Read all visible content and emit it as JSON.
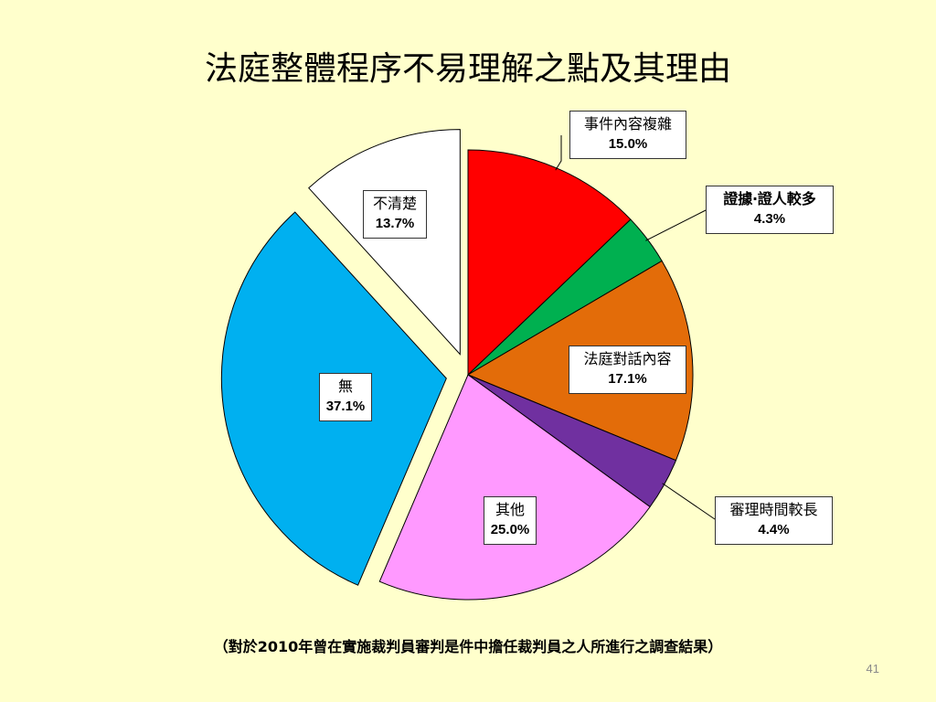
{
  "slide": {
    "title": "法庭整體程序不易理解之點及其理由",
    "footnote": "（對於2010年曾在實施裁判員審判是件中擔任裁判員之人所進行之調查結果）",
    "page_number": "41"
  },
  "chart_data": {
    "type": "pie",
    "title": "法庭整體程序不易理解之點及其理由",
    "slices": [
      {
        "label": "事件內容複雜",
        "value": 15.0,
        "value_label": "15.0%",
        "color": "#FF0000",
        "exploded": false
      },
      {
        "label": "證據‧證人較多",
        "value": 4.3,
        "value_label": "4.3%",
        "color": "#00B050",
        "exploded": false
      },
      {
        "label": "法庭對話內容",
        "value": 17.1,
        "value_label": "17.1%",
        "color": "#E36C09",
        "exploded": false
      },
      {
        "label": "審理時間較長",
        "value": 4.4,
        "value_label": "4.4%",
        "color": "#7030A0",
        "exploded": false
      },
      {
        "label": "其他",
        "value": 25.0,
        "value_label": "25.0%",
        "color": "#FF99FF",
        "exploded": false
      },
      {
        "label": "無",
        "value": 37.1,
        "value_label": "37.1%",
        "color": "#00B0F0",
        "exploded": true
      },
      {
        "label": "不清楚",
        "value": 13.7,
        "value_label": "13.7%",
        "color": "#FFFFFF",
        "exploded": true
      }
    ],
    "start_angle_deg": 0,
    "direction": "clockwise",
    "legend": "none",
    "data_labels": "callout boxes"
  }
}
